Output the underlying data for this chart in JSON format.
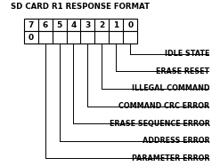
{
  "title": "SD CARD R1 RESPONSE FORMAT",
  "bit_labels": [
    "7",
    "6",
    "5",
    "4",
    "3",
    "2",
    "1",
    "0"
  ],
  "row0_value": "0",
  "signals": [
    {
      "bit": 0,
      "label": "IDLE STATE"
    },
    {
      "bit": 1,
      "label": "ERASE RESET"
    },
    {
      "bit": 2,
      "label": "ILLEGAL COMMAND"
    },
    {
      "bit": 3,
      "label": "COMMAND CRC ERROR"
    },
    {
      "bit": 4,
      "label": "ERASE SEQUENCE ERROR"
    },
    {
      "bit": 5,
      "label": "ADDRESS ERROR"
    },
    {
      "bit": 6,
      "label": "PARAMETER ERROR"
    }
  ],
  "bg_color": "#ffffff",
  "box_color": "#ffffff",
  "line_color": "#000000",
  "text_color": "#000000",
  "title_fontsize": 6.2,
  "label_fontsize": 5.8,
  "bit_fontsize": 6.5,
  "fig_width": 2.38,
  "fig_height": 1.87
}
